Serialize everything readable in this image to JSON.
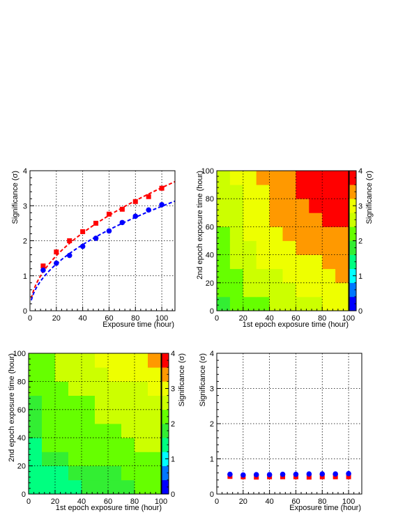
{
  "chart_data": [
    {
      "type": "scatter",
      "xlabel": "Exposure time (hour)",
      "ylabel": "Significance (σ)",
      "xlim": [
        0,
        110
      ],
      "ylim": [
        0,
        4
      ],
      "xticks": [
        0,
        20,
        40,
        60,
        80,
        100
      ],
      "yticks": [
        0,
        1,
        2,
        3,
        4
      ],
      "grid": true,
      "series": [
        {
          "marker": "square",
          "color": "#ff0000",
          "x": [
            10,
            20,
            30,
            40,
            50,
            60,
            70,
            80,
            90,
            100
          ],
          "y": [
            1.28,
            1.68,
            2.0,
            2.26,
            2.5,
            2.76,
            2.9,
            3.12,
            3.26,
            3.5
          ],
          "fit": {
            "color": "#ff0000",
            "style": "dashed",
            "coef": 0.3516,
            "power": 0.5,
            "x_range": [
              1,
              110
            ]
          }
        },
        {
          "marker": "circle",
          "color": "#0000ff",
          "x": [
            10,
            20,
            30,
            40,
            50,
            60,
            70,
            80,
            90,
            100
          ],
          "y": [
            1.16,
            1.36,
            1.58,
            1.84,
            2.07,
            2.28,
            2.52,
            2.7,
            2.88,
            3.03
          ],
          "fit": {
            "color": "#0000ff",
            "style": "dashed",
            "coef": 0.2985,
            "power": 0.5,
            "x_range": [
              1,
              110
            ]
          }
        }
      ]
    },
    {
      "type": "heatmap",
      "xlabel": "1st epoch exposure time (hour)",
      "ylabel": "2nd epoch exposure time (hour)",
      "zlabel": "Significance (σ)",
      "xlim": [
        0,
        100
      ],
      "ylim": [
        0,
        100
      ],
      "zlim": [
        0,
        4
      ],
      "xticks": [
        0,
        20,
        40,
        60,
        80,
        100
      ],
      "yticks": [
        0,
        20,
        40,
        60,
        80,
        100
      ],
      "zticks": [
        0,
        1,
        2,
        3,
        4
      ],
      "x_edges": [
        0,
        10,
        20,
        30,
        40,
        50,
        60,
        70,
        80,
        90,
        100
      ],
      "y_edges": [
        0,
        10,
        20,
        30,
        40,
        50,
        60,
        70,
        80,
        90,
        100
      ],
      "z": [
        [
          1.9,
          2.2,
          2.3,
          2.3,
          2.4,
          2.5,
          2.6,
          2.7,
          2.8,
          2.9
        ],
        [
          2.0,
          2.2,
          2.4,
          2.5,
          2.6,
          2.7,
          2.8,
          2.9,
          2.9,
          3.0
        ],
        [
          2.1,
          2.3,
          2.5,
          2.6,
          2.7,
          2.8,
          2.9,
          3.0,
          3.1,
          3.2
        ],
        [
          2.2,
          2.4,
          2.6,
          2.8,
          2.9,
          3.0,
          3.1,
          3.1,
          3.2,
          3.3
        ],
        [
          2.3,
          2.5,
          2.7,
          2.9,
          3.0,
          3.1,
          3.2,
          3.3,
          3.3,
          3.4
        ],
        [
          2.3,
          2.6,
          2.8,
          3.0,
          3.1,
          3.2,
          3.3,
          3.4,
          3.5,
          3.5
        ],
        [
          2.4,
          2.6,
          2.8,
          3.0,
          3.2,
          3.3,
          3.4,
          3.5,
          3.6,
          3.6
        ],
        [
          2.4,
          2.7,
          2.9,
          3.1,
          3.2,
          3.4,
          3.5,
          3.6,
          3.7,
          3.7
        ],
        [
          2.5,
          2.7,
          3.0,
          3.1,
          3.3,
          3.4,
          3.6,
          3.7,
          3.7,
          3.8
        ],
        [
          2.5,
          2.8,
          3.0,
          3.2,
          3.4,
          3.5,
          3.6,
          3.7,
          3.8,
          3.9
        ]
      ],
      "palette": [
        "#0000ff",
        "#0077ff",
        "#00ffff",
        "#00ff80",
        "#33ee33",
        "#66ff00",
        "#ccff00",
        "#eeff00",
        "#ff9900",
        "#ff0000"
      ],
      "notes": []
    },
    {
      "type": "heatmap",
      "xlabel": "1st epoch exposure time (hour)",
      "ylabel": "2nd epoch exposure time (hour)",
      "zlabel": "Significance (σ)",
      "xlim": [
        0,
        100
      ],
      "ylim": [
        0,
        100
      ],
      "zlim": [
        0,
        4
      ],
      "xticks": [
        0,
        20,
        40,
        60,
        80,
        100
      ],
      "yticks": [
        0,
        20,
        40,
        60,
        80,
        100
      ],
      "zticks": [
        0,
        1,
        2,
        3,
        4
      ],
      "x_edges": [
        0,
        10,
        20,
        30,
        40,
        50,
        60,
        70,
        80,
        90,
        100
      ],
      "y_edges": [
        0,
        10,
        20,
        30,
        40,
        50,
        60,
        70,
        80,
        90,
        100
      ],
      "z": [
        [
          1.2,
          1.3,
          1.4,
          1.5,
          1.6,
          1.7,
          1.8,
          1.9,
          2.0,
          2.1
        ],
        [
          1.3,
          1.4,
          1.5,
          1.6,
          1.7,
          1.8,
          1.9,
          2.0,
          2.1,
          2.2
        ],
        [
          1.4,
          1.6,
          1.9,
          2.0,
          2.1,
          2.1,
          2.2,
          2.2,
          2.3,
          2.3
        ],
        [
          1.5,
          2.0,
          2.1,
          2.1,
          2.2,
          2.2,
          2.3,
          2.3,
          2.4,
          2.4
        ],
        [
          1.6,
          2.0,
          2.1,
          2.2,
          2.2,
          2.3,
          2.3,
          2.4,
          2.4,
          2.5
        ],
        [
          1.6,
          2.1,
          2.2,
          2.2,
          2.3,
          2.4,
          2.4,
          2.5,
          2.5,
          2.6
        ],
        [
          1.7,
          2.1,
          2.2,
          2.3,
          2.3,
          2.4,
          2.5,
          2.5,
          2.6,
          2.6
        ],
        [
          2.1,
          2.2,
          2.3,
          2.4,
          2.4,
          2.6,
          2.6,
          2.7,
          2.7,
          2.8
        ],
        [
          2.1,
          2.2,
          2.4,
          2.4,
          2.6,
          2.7,
          2.8,
          2.9,
          2.9,
          3.0
        ],
        [
          2.2,
          2.3,
          2.4,
          2.5,
          2.7,
          2.8,
          2.9,
          2.9,
          3.0,
          3.4
        ]
      ],
      "palette": [
        "#0000ff",
        "#0077ff",
        "#00ffff",
        "#00ff80",
        "#33ee33",
        "#66ff00",
        "#ccff00",
        "#eeff00",
        "#ff9900",
        "#ff0000"
      ],
      "notes": []
    },
    {
      "type": "scatter",
      "xlabel": "Exposure time (hour)",
      "ylabel": "Significance (σ)",
      "xlim": [
        0,
        110
      ],
      "ylim": [
        0,
        4
      ],
      "xticks": [
        0,
        20,
        40,
        60,
        80,
        100
      ],
      "yticks": [
        0,
        1,
        2,
        3,
        4
      ],
      "grid": true,
      "series": [
        {
          "marker": "square",
          "color": "#ff0000",
          "x": [
            10,
            20,
            30,
            40,
            50,
            60,
            70,
            80,
            90,
            100
          ],
          "y": [
            0.5,
            0.49,
            0.48,
            0.49,
            0.49,
            0.49,
            0.48,
            0.49,
            0.49,
            0.49
          ]
        },
        {
          "marker": "circle",
          "color": "#0000ff",
          "x": [
            10,
            20,
            30,
            40,
            50,
            60,
            70,
            80,
            90,
            100
          ],
          "y": [
            0.56,
            0.54,
            0.55,
            0.55,
            0.56,
            0.56,
            0.57,
            0.57,
            0.57,
            0.58
          ]
        }
      ]
    }
  ]
}
